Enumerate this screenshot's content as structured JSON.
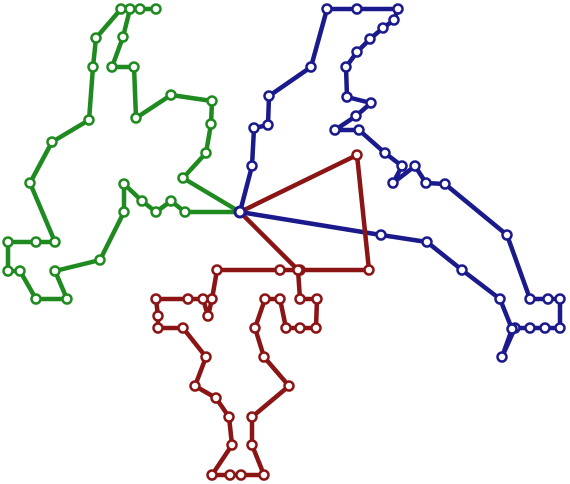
{
  "colors": {
    "background": "#ffffff",
    "routes": [
      "#1f8a1f",
      "#1a1a8c",
      "#8b1414"
    ],
    "depot": "#1a1a8c"
  }
}
